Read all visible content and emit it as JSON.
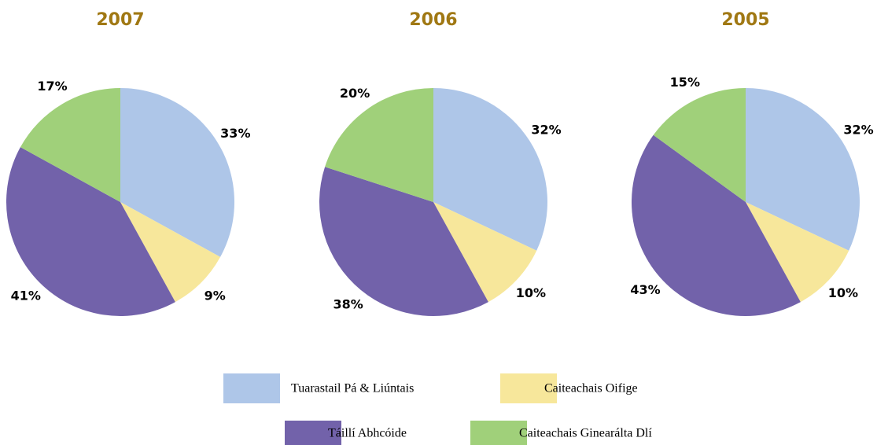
{
  "chart_data": [
    {
      "type": "pie",
      "title": "2007",
      "categories": [
        "Tuarastail Pá & Liúntais",
        "Caiteachais Oifige",
        "Táillí Abhcóide",
        "Caiteachais Ginearálta Dlí"
      ],
      "values": [
        33,
        9,
        41,
        17
      ],
      "value_labels": [
        "33%",
        "9%",
        "41%",
        "17%"
      ],
      "colors": [
        "#aec6e8",
        "#f7e79b",
        "#7262aa",
        "#a0d07a"
      ]
    },
    {
      "type": "pie",
      "title": "2006",
      "categories": [
        "Tuarastail Pá & Liúntais",
        "Caiteachais Oifige",
        "Táillí Abhcóide",
        "Caiteachais Ginearálta Dlí"
      ],
      "values": [
        32,
        10,
        38,
        20
      ],
      "value_labels": [
        "32%",
        "10%",
        "38%",
        "20%"
      ],
      "colors": [
        "#aec6e8",
        "#f7e79b",
        "#7262aa",
        "#a0d07a"
      ]
    },
    {
      "type": "pie",
      "title": "2005",
      "categories": [
        "Tuarastail Pá & Liúntais",
        "Caiteachais Oifige",
        "Táillí Abhcóide",
        "Caiteachais Ginearálta Dlí"
      ],
      "values": [
        32,
        10,
        43,
        15
      ],
      "value_labels": [
        "32%",
        "10%",
        "43%",
        "15%"
      ],
      "colors": [
        "#aec6e8",
        "#f7e79b",
        "#7262aa",
        "#a0d07a"
      ]
    }
  ]
}
